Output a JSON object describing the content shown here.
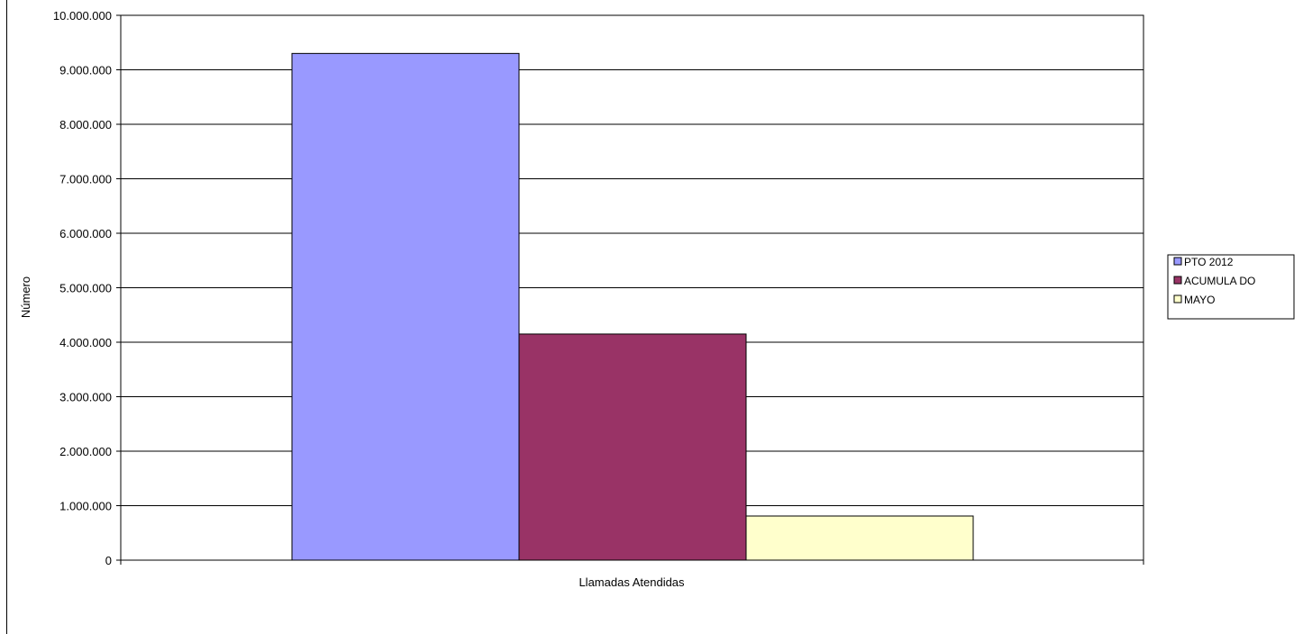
{
  "chart_data": {
    "type": "bar",
    "categories": [
      "Llamadas Atendidas"
    ],
    "series": [
      {
        "name": "PTO  2012",
        "values": [
          9300000
        ],
        "color": "#9999ff"
      },
      {
        "name": "ACUMULADO",
        "values": [
          4150000
        ],
        "color": "#993366"
      },
      {
        "name": "MAYO",
        "values": [
          810000
        ],
        "color": "#ffffcc"
      }
    ],
    "ylabel": "Número",
    "xlabel": "",
    "ylim": [
      0,
      10000000
    ],
    "y_ticks": [
      {
        "value": 0,
        "label": "0"
      },
      {
        "value": 1000000,
        "label": "1.000.000"
      },
      {
        "value": 2000000,
        "label": "2.000.000"
      },
      {
        "value": 3000000,
        "label": "3.000.000"
      },
      {
        "value": 4000000,
        "label": "4.000.000"
      },
      {
        "value": 5000000,
        "label": "5.000.000"
      },
      {
        "value": 6000000,
        "label": "6.000.000"
      },
      {
        "value": 7000000,
        "label": "7.000.000"
      },
      {
        "value": 8000000,
        "label": "8.000.000"
      },
      {
        "value": 9000000,
        "label": "9.000.000"
      },
      {
        "value": 10000000,
        "label": "10.000.000"
      }
    ],
    "grid": true,
    "legend_position": "right",
    "legend_labels": [
      "PTO  2012",
      "ACUMULA DO",
      "MAYO"
    ]
  }
}
